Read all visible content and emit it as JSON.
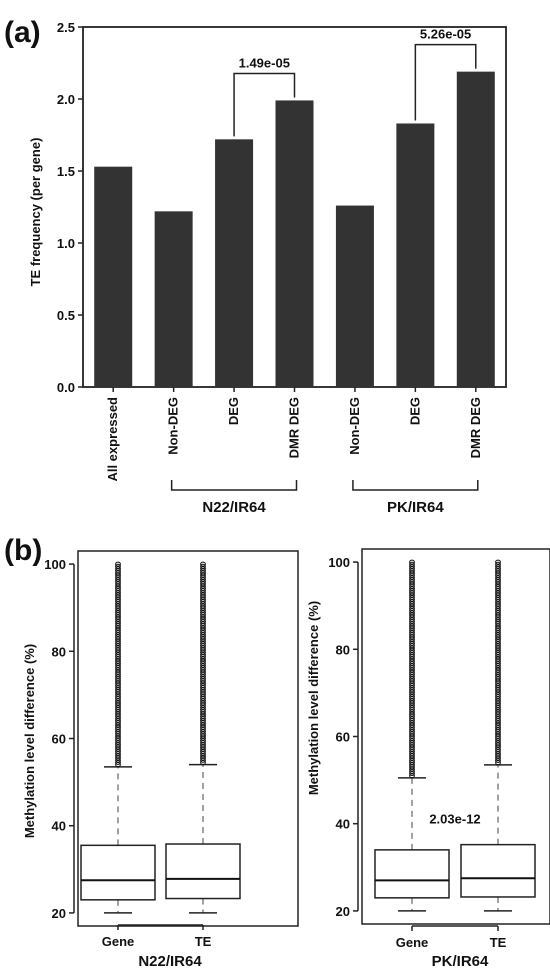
{
  "panel_a": {
    "label": "(a)",
    "groups": [
      "N22/IR64",
      "PK/IR64"
    ],
    "pvalues": [
      "1.49e-05",
      "5.26e-05"
    ]
  },
  "panel_b": {
    "label": "(b)",
    "pvalue_right": "2.03e-12"
  },
  "chart_data": [
    {
      "type": "bar",
      "ylabel": "TE frequency (per gene)",
      "xlabel": "",
      "ylim": [
        0,
        2.5
      ],
      "yticks": [
        "0.0",
        "0.5",
        "1.0",
        "1.5",
        "2.0",
        "2.5"
      ],
      "categories": [
        "All expressed",
        "Non-DEG",
        "DEG",
        "DMR DEG",
        "Non-DEG",
        "DEG",
        "DMR DEG"
      ],
      "values": [
        1.53,
        1.22,
        1.72,
        1.99,
        1.26,
        1.83,
        2.19
      ],
      "group_labels": [
        {
          "text": "N22/IR64",
          "categories": [
            1,
            2,
            3
          ]
        },
        {
          "text": "PK/IR64",
          "categories": [
            4,
            5,
            6
          ]
        }
      ],
      "annotations": [
        {
          "text": "1.49e-05",
          "between": [
            2,
            3
          ]
        },
        {
          "text": "5.26e-05",
          "between": [
            5,
            6
          ]
        }
      ],
      "color": "#333333"
    },
    {
      "type": "boxplot",
      "title": "N22/IR64",
      "ylabel": "Methylation level difference (%)",
      "ylim": [
        17,
        103
      ],
      "yticks": [
        "20",
        "40",
        "60",
        "80",
        "100"
      ],
      "categories": [
        "Gene",
        "TE"
      ],
      "boxes": [
        {
          "whisker_low": 20,
          "q1": 23,
          "median": 27.5,
          "q3": 35.5,
          "whisker_high": 53.5,
          "outliers_from": 54,
          "outliers_to": 100
        },
        {
          "whisker_low": 20,
          "q1": 23.3,
          "median": 27.8,
          "q3": 35.8,
          "whisker_high": 54,
          "outliers_from": 54.5,
          "outliers_to": 100
        }
      ]
    },
    {
      "type": "boxplot",
      "title": "PK/IR64",
      "ylabel": "Methylation level difference (%)",
      "ylim": [
        17,
        103
      ],
      "yticks": [
        "20",
        "40",
        "60",
        "80",
        "100"
      ],
      "categories": [
        "Gene",
        "TE"
      ],
      "boxes": [
        {
          "whisker_low": 20,
          "q1": 23,
          "median": 27,
          "q3": 34,
          "whisker_high": 50.5,
          "outliers_from": 51,
          "outliers_to": 100
        },
        {
          "whisker_low": 20,
          "q1": 23.2,
          "median": 27.5,
          "q3": 35.2,
          "whisker_high": 53.5,
          "outliers_from": 54,
          "outliers_to": 100
        }
      ],
      "annotations": [
        {
          "text": "2.03e-12"
        }
      ]
    }
  ]
}
